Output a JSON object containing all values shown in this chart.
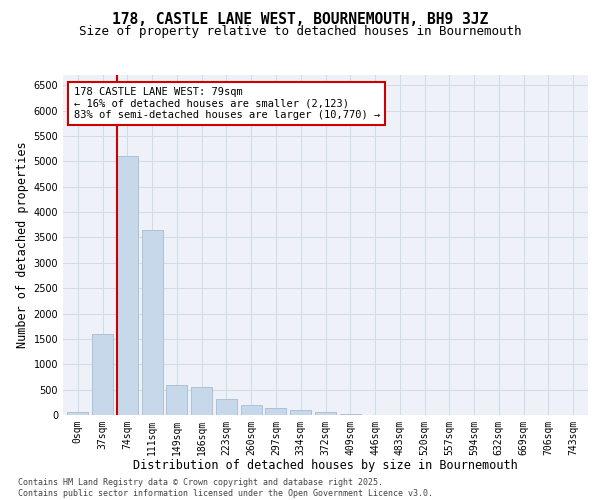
{
  "title_line1": "178, CASTLE LANE WEST, BOURNEMOUTH, BH9 3JZ",
  "title_line2": "Size of property relative to detached houses in Bournemouth",
  "xlabel": "Distribution of detached houses by size in Bournemouth",
  "ylabel": "Number of detached properties",
  "bar_color": "#c8d8eb",
  "bar_edge_color": "#9ab4cc",
  "vline_color": "#cc0000",
  "annotation_text": "178 CASTLE LANE WEST: 79sqm\n← 16% of detached houses are smaller (2,123)\n83% of semi-detached houses are larger (10,770) →",
  "annotation_box_color": "#ffffff",
  "annotation_border_color": "#cc0000",
  "categories": [
    "0sqm",
    "37sqm",
    "74sqm",
    "111sqm",
    "149sqm",
    "186sqm",
    "223sqm",
    "260sqm",
    "297sqm",
    "334sqm",
    "372sqm",
    "409sqm",
    "446sqm",
    "483sqm",
    "520sqm",
    "557sqm",
    "594sqm",
    "632sqm",
    "669sqm",
    "706sqm",
    "743sqm"
  ],
  "bar_heights": [
    55,
    1600,
    5100,
    3650,
    590,
    550,
    310,
    195,
    140,
    105,
    60,
    18,
    5,
    2,
    1,
    0,
    0,
    0,
    0,
    0,
    0
  ],
  "ylim": [
    0,
    6700
  ],
  "yticks": [
    0,
    500,
    1000,
    1500,
    2000,
    2500,
    3000,
    3500,
    4000,
    4500,
    5000,
    5500,
    6000,
    6500
  ],
  "grid_color": "#d0dce8",
  "background_color": "#eef2f8",
  "footnote": "Contains HM Land Registry data © Crown copyright and database right 2025.\nContains public sector information licensed under the Open Government Licence v3.0.",
  "title_fontsize": 10.5,
  "subtitle_fontsize": 9,
  "axis_label_fontsize": 8.5,
  "tick_fontsize": 7,
  "annotation_fontsize": 7.5,
  "footnote_fontsize": 6
}
